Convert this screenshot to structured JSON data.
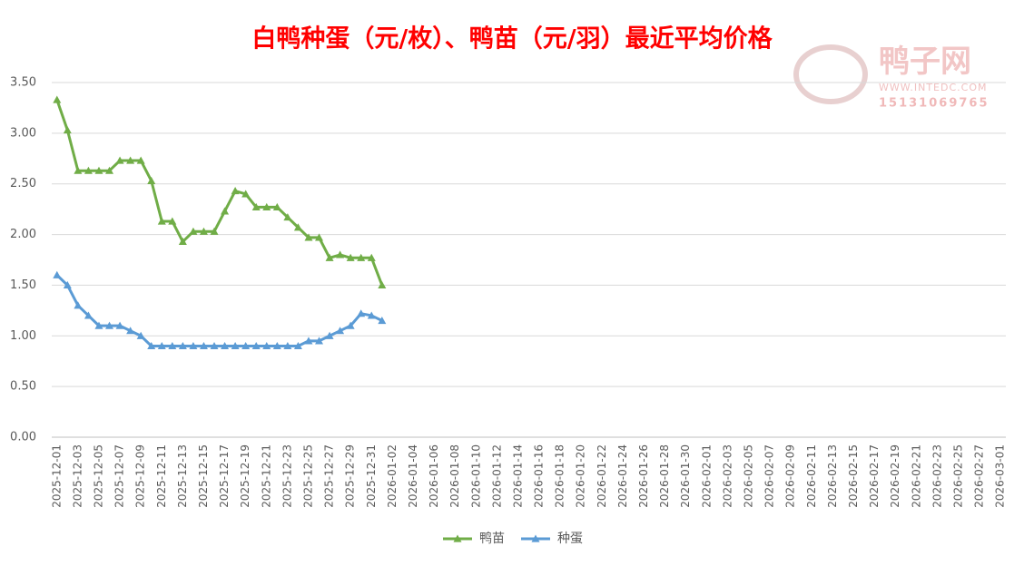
{
  "chart_data": {
    "type": "line",
    "title": "白鸭种蛋（元/枚）、鸭苗（元/羽）最近平均价格",
    "watermark": [
      "鸭子网",
      "WWW.INTEDC.COM",
      "15131069765"
    ],
    "categories": [
      "2025-12-01",
      null,
      "2025-12-03",
      null,
      "2025-12-05",
      null,
      "2025-12-07",
      null,
      "2025-12-09",
      null,
      "2025-12-11",
      null,
      "2025-12-13",
      null,
      "2025-12-15",
      null,
      "2025-12-17",
      null,
      "2025-12-19",
      null,
      "2025-12-21",
      null,
      "2025-12-23",
      null,
      "2025-12-25",
      null,
      "2025-12-27",
      null,
      "2025-12-29",
      null,
      "2025-12-31",
      null,
      "2026-01-02",
      null,
      "2026-01-04",
      null,
      "2026-01-06",
      null,
      "2026-01-08",
      null,
      "2026-01-10",
      null,
      "2026-01-12",
      null,
      "2026-01-14",
      null,
      "2026-01-16",
      null,
      "2026-01-18",
      null,
      "2026-01-20",
      null,
      "2026-01-22",
      null,
      "2026-01-24",
      null,
      "2026-01-26",
      null,
      "2026-01-28",
      null,
      "2026-01-30",
      null,
      "2026-02-01",
      null,
      "2026-02-03",
      null,
      "2026-02-05",
      null,
      "2026-02-07",
      null,
      "2026-02-09",
      null,
      "2026-02-11",
      null,
      "2026-02-13",
      null,
      "2026-02-15",
      null,
      "2026-02-17",
      null,
      "2026-02-19",
      null,
      "2026-02-21",
      null,
      "2026-02-23",
      null,
      "2026-02-25",
      null,
      "2026-02-27",
      null,
      "2026-03-01"
    ],
    "series": [
      {
        "name": "鸭苗",
        "color": "#70ad47",
        "values": [
          3.33,
          3.03,
          2.63,
          2.63,
          2.63,
          2.63,
          2.73,
          2.73,
          2.73,
          2.53,
          2.13,
          2.13,
          1.93,
          2.03,
          2.03,
          2.03,
          2.23,
          2.43,
          2.4,
          2.27,
          2.27,
          2.27,
          2.17,
          2.07,
          1.97,
          1.97,
          1.77,
          1.8,
          1.77,
          1.77,
          1.77,
          1.5,
          null,
          null,
          null,
          null,
          null,
          null,
          null,
          null,
          null,
          null,
          null,
          null,
          null,
          null,
          null,
          null,
          null,
          null,
          null,
          null,
          null,
          null,
          null,
          null,
          null,
          null,
          null,
          null,
          null,
          null,
          null,
          null,
          null,
          null,
          null,
          null,
          null,
          null,
          null,
          null,
          null,
          null,
          null,
          null,
          null,
          null,
          null,
          null,
          null,
          null,
          null,
          null,
          null,
          null,
          null,
          null,
          null,
          null,
          null
        ]
      },
      {
        "name": "种蛋",
        "color": "#5b9bd5",
        "values": [
          1.6,
          1.5,
          1.3,
          1.2,
          1.1,
          1.1,
          1.1,
          1.05,
          1.0,
          0.9,
          0.9,
          0.9,
          0.9,
          0.9,
          0.9,
          0.9,
          0.9,
          0.9,
          0.9,
          0.9,
          0.9,
          0.9,
          0.9,
          0.9,
          0.95,
          0.95,
          1.0,
          1.05,
          1.1,
          1.22,
          1.2,
          1.15,
          null,
          null,
          null,
          null,
          null,
          null,
          null,
          null,
          null,
          null,
          null,
          null,
          null,
          null,
          null,
          null,
          null,
          null,
          null,
          null,
          null,
          null,
          null,
          null,
          null,
          null,
          null,
          null,
          null,
          null,
          null,
          null,
          null,
          null,
          null,
          null,
          null,
          null,
          null,
          null,
          null,
          null,
          null,
          null,
          null,
          null,
          null,
          null,
          null,
          null,
          null,
          null,
          null,
          null,
          null,
          null,
          null,
          null,
          null
        ]
      }
    ],
    "ylim": [
      0,
      3.5
    ],
    "yticks": [
      {
        "value": 0,
        "label": "0.00"
      },
      {
        "value": 0.5,
        "label": "0.50"
      },
      {
        "value": 1,
        "label": "1.00"
      },
      {
        "value": 1.5,
        "label": "1.50"
      },
      {
        "value": 2,
        "label": "2.00"
      },
      {
        "value": 2.5,
        "label": "2.50"
      },
      {
        "value": 3,
        "label": "3.00"
      },
      {
        "value": 3.5,
        "label": "3.50"
      }
    ],
    "grid": true,
    "legend": "bottom"
  }
}
